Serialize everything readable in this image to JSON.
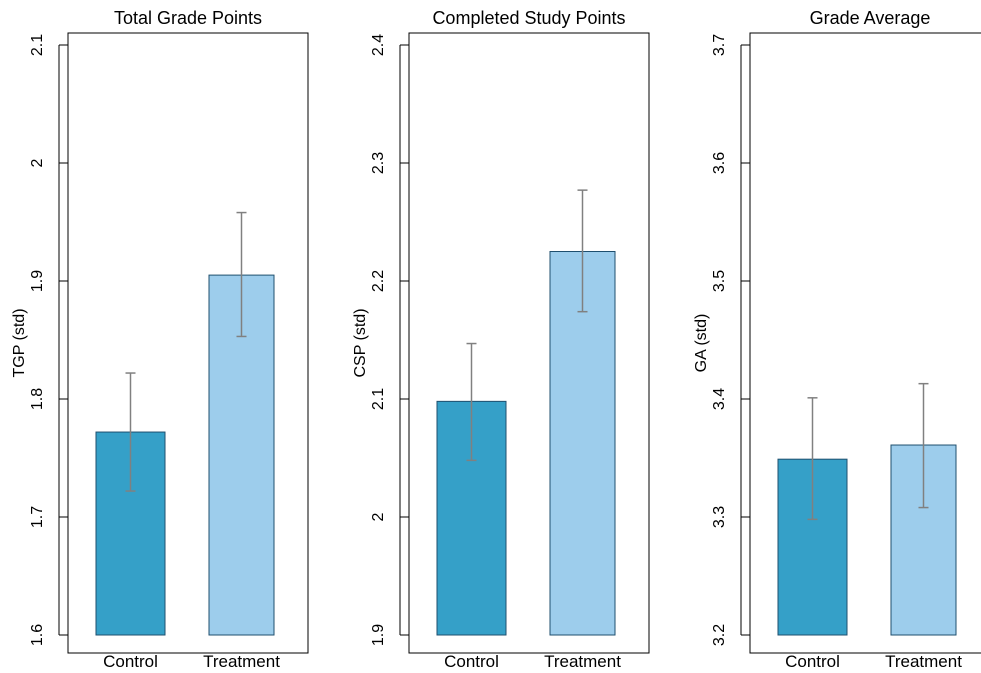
{
  "chart_data": [
    {
      "type": "bar",
      "title": "Total Grade Points",
      "ylabel": "TGP (std)",
      "categories": [
        "Control",
        "Treatment"
      ],
      "values": [
        1.772,
        1.905
      ],
      "error_low": [
        1.722,
        1.853
      ],
      "error_high": [
        1.822,
        1.958
      ],
      "ylim": [
        1.6,
        2.1
      ],
      "yticks": [
        1.6,
        1.7,
        1.8,
        1.9,
        2.0,
        2.1
      ],
      "ytick_labels": [
        "1.6",
        "1.7",
        "1.8",
        "1.9",
        "2",
        "2.1"
      ],
      "colors": [
        "#35A0C8",
        "#9DCDEC"
      ],
      "error_color": "#808080"
    },
    {
      "type": "bar",
      "title": "Completed Study Points",
      "ylabel": "CSP (std)",
      "categories": [
        "Control",
        "Treatment"
      ],
      "values": [
        2.098,
        2.225
      ],
      "error_low": [
        2.048,
        2.174
      ],
      "error_high": [
        2.147,
        2.277
      ],
      "ylim": [
        1.9,
        2.4
      ],
      "yticks": [
        1.9,
        2.0,
        2.1,
        2.2,
        2.3,
        2.4
      ],
      "ytick_labels": [
        "1.9",
        "2",
        "2.1",
        "2.2",
        "2.3",
        "2.4"
      ],
      "colors": [
        "#35A0C8",
        "#9DCDEC"
      ],
      "error_color": "#808080"
    },
    {
      "type": "bar",
      "title": "Grade Average",
      "ylabel": "GA (std)",
      "categories": [
        "Control",
        "Treatment"
      ],
      "values": [
        3.349,
        3.361
      ],
      "error_low": [
        3.298,
        3.308
      ],
      "error_high": [
        3.401,
        3.413
      ],
      "ylim": [
        3.2,
        3.7
      ],
      "yticks": [
        3.2,
        3.3,
        3.4,
        3.5,
        3.6,
        3.7
      ],
      "ytick_labels": [
        "3.2",
        "3.3",
        "3.4",
        "3.5",
        "3.6",
        "3.7"
      ],
      "colors": [
        "#35A0C8",
        "#9DCDEC"
      ],
      "error_color": "#808080"
    }
  ]
}
